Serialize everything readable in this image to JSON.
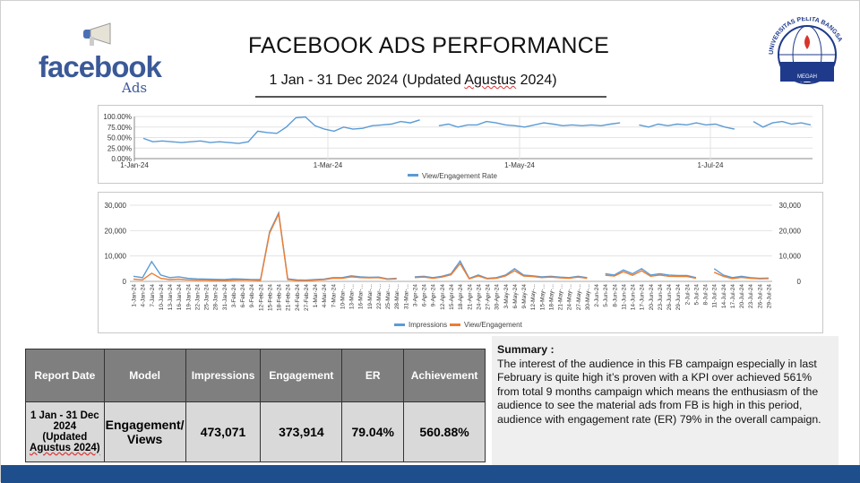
{
  "header": {
    "title": "FACEBOOK ADS PERFORMANCE",
    "subtitle_pre": "1 Jan - 31 Dec 2024 (Updated ",
    "subtitle_word": "Agustus",
    "subtitle_post": " 2024)"
  },
  "logo": {
    "brand": "facebook",
    "product": "Ads",
    "university": "UNIVERSITAS PELITA BANGSA",
    "motto": "MEGAH"
  },
  "colors": {
    "blue": "#5b9bd5",
    "orange": "#ed7d31",
    "footer": "#1f4e8c"
  },
  "chart_data": [
    {
      "type": "line",
      "title": "",
      "legend": [
        "View/Engagement Rate"
      ],
      "legend_position": "bottom",
      "ylim": [
        0,
        100
      ],
      "yticks": [
        "100.00%",
        "75.00%",
        "50.00%",
        "25.00%",
        "0.00%"
      ],
      "xticks": [
        "1-Jan-24",
        "1-Mar-24",
        "1-May-24",
        "1-Jul-24"
      ],
      "series": [
        {
          "name": "View/Engagement Rate",
          "values": [
            48,
            40,
            42,
            40,
            38,
            40,
            42,
            38,
            40,
            38,
            36,
            40,
            65,
            62,
            60,
            75,
            97,
            99,
            78,
            70,
            65,
            75,
            70,
            72,
            78,
            80,
            82,
            88,
            85,
            92,
            null,
            78,
            82,
            75,
            80,
            80,
            88,
            85,
            80,
            78,
            75,
            80,
            85,
            82,
            78,
            80,
            78,
            80,
            78,
            82,
            85,
            null,
            80,
            75,
            82,
            78,
            82,
            80,
            85,
            80,
            82,
            75,
            70,
            null,
            88,
            75,
            85,
            88,
            82,
            85,
            80
          ]
        }
      ]
    },
    {
      "type": "line",
      "legend": [
        "Impressions",
        "View/Engagement"
      ],
      "legend_position": "bottom",
      "ylim": [
        0,
        30000
      ],
      "yticks": [
        "30,000",
        "20,000",
        "10,000",
        "0"
      ],
      "x": [
        "1-Jan-24",
        "4-Jan-24",
        "7-Jan-24",
        "10-Jan-24",
        "13-Jan-24",
        "16-Jan-24",
        "19-Jan-24",
        "22-Jan-24",
        "25-Jan-24",
        "28-Jan-24",
        "31-Jan-24",
        "3-Feb-24",
        "6-Feb-24",
        "9-Feb-24",
        "12-Feb-24",
        "15-Feb-24",
        "18-Feb-24",
        "21-Feb-24",
        "24-Feb-24",
        "27-Feb-24",
        "1-Mar-24",
        "4-Mar-24",
        "7-Mar-24",
        "10-Mar-...",
        "13-Mar-...",
        "16-Mar-...",
        "19-Mar-...",
        "22-Mar-...",
        "25-Mar-...",
        "28-Mar-...",
        "31-Mar-...",
        "3-Apr-24",
        "6-Apr-24",
        "9-Apr-24",
        "12-Apr-24",
        "15-Apr-24",
        "18-Apr-24",
        "21-Apr-24",
        "24-Apr-24",
        "27-Apr-24",
        "30-Apr-24",
        "3-May-24",
        "6-May-24",
        "9-May-24",
        "12-May-...",
        "15-May-...",
        "18-May-...",
        "21-May-...",
        "24-May-...",
        "27-May-...",
        "30-May-...",
        "2-Jun-24",
        "5-Jun-24",
        "8-Jun-24",
        "11-Jun-24",
        "14-Jun-24",
        "17-Jun-24",
        "20-Jun-24",
        "23-Jun-24",
        "26-Jun-24",
        "29-Jun-24",
        "2-Jul-24",
        "5-Jul-24",
        "8-Jul-24",
        "11-Jul-24",
        "14-Jul-24",
        "17-Jul-24",
        "20-Jul-24",
        "23-Jul-24",
        "26-Jul-24",
        "29-Jul-24"
      ],
      "series": [
        {
          "name": "Impressions",
          "values": [
            2000,
            1500,
            7800,
            2500,
            1500,
            1800,
            1200,
            1000,
            900,
            800,
            700,
            1000,
            900,
            700,
            700,
            19500,
            27000,
            1000,
            600,
            500,
            700,
            900,
            1500,
            1500,
            2200,
            1800,
            1600,
            1700,
            1000,
            1200,
            null,
            1800,
            2000,
            1500,
            2000,
            3000,
            8000,
            1200,
            2500,
            1200,
            1500,
            2500,
            5000,
            2500,
            2200,
            1800,
            2000,
            1700,
            1500,
            2000,
            1500,
            null,
            3000,
            2500,
            4500,
            3000,
            5000,
            2500,
            3000,
            2500,
            2300,
            2300,
            1500,
            null,
            5000,
            2500,
            1500,
            2000,
            1500,
            1200,
            1300
          ]
        },
        {
          "name": "View/Engagement",
          "values": [
            900,
            600,
            3200,
            1200,
            700,
            900,
            600,
            500,
            500,
            400,
            300,
            500,
            600,
            500,
            400,
            19000,
            26500,
            700,
            400,
            300,
            500,
            700,
            1200,
            1200,
            1800,
            1500,
            1400,
            1500,
            800,
            1000,
            null,
            1500,
            1700,
            1200,
            1700,
            2600,
            7000,
            1000,
            2100,
            1000,
            1200,
            2100,
            4200,
            2100,
            1900,
            1500,
            1700,
            1400,
            1200,
            1700,
            1200,
            null,
            2400,
            2100,
            3800,
            2400,
            4200,
            2000,
            2500,
            2000,
            1900,
            1900,
            1200,
            null,
            3600,
            2000,
            1100,
            1600,
            1200,
            1000,
            1100
          ]
        }
      ]
    }
  ],
  "table": {
    "headers": [
      "Report Date",
      "Model",
      "Impressions",
      "Engagement",
      "ER",
      "Achievement"
    ],
    "row": {
      "date_line1": "1 Jan - 31 Dec",
      "date_line2": "2024",
      "date_line3": "(Updated",
      "date_line4": "Agustus 2024)",
      "model_line1": "Engagement/",
      "model_line2": "Views",
      "impressions": "473,071",
      "engagement": "373,914",
      "er": "79.04%",
      "achievement": "560.88%"
    }
  },
  "summary": {
    "heading": "Summary :",
    "body": "The interest of the audience in this FB campaign especially in last February is quite high it’s proven with a KPI over achieved 561% from total 9 months campaign which means the enthusiasm of the audience to see the material ads from FB is high in this period, audience with engagement rate (ER) 79%  in the overall campaign."
  }
}
